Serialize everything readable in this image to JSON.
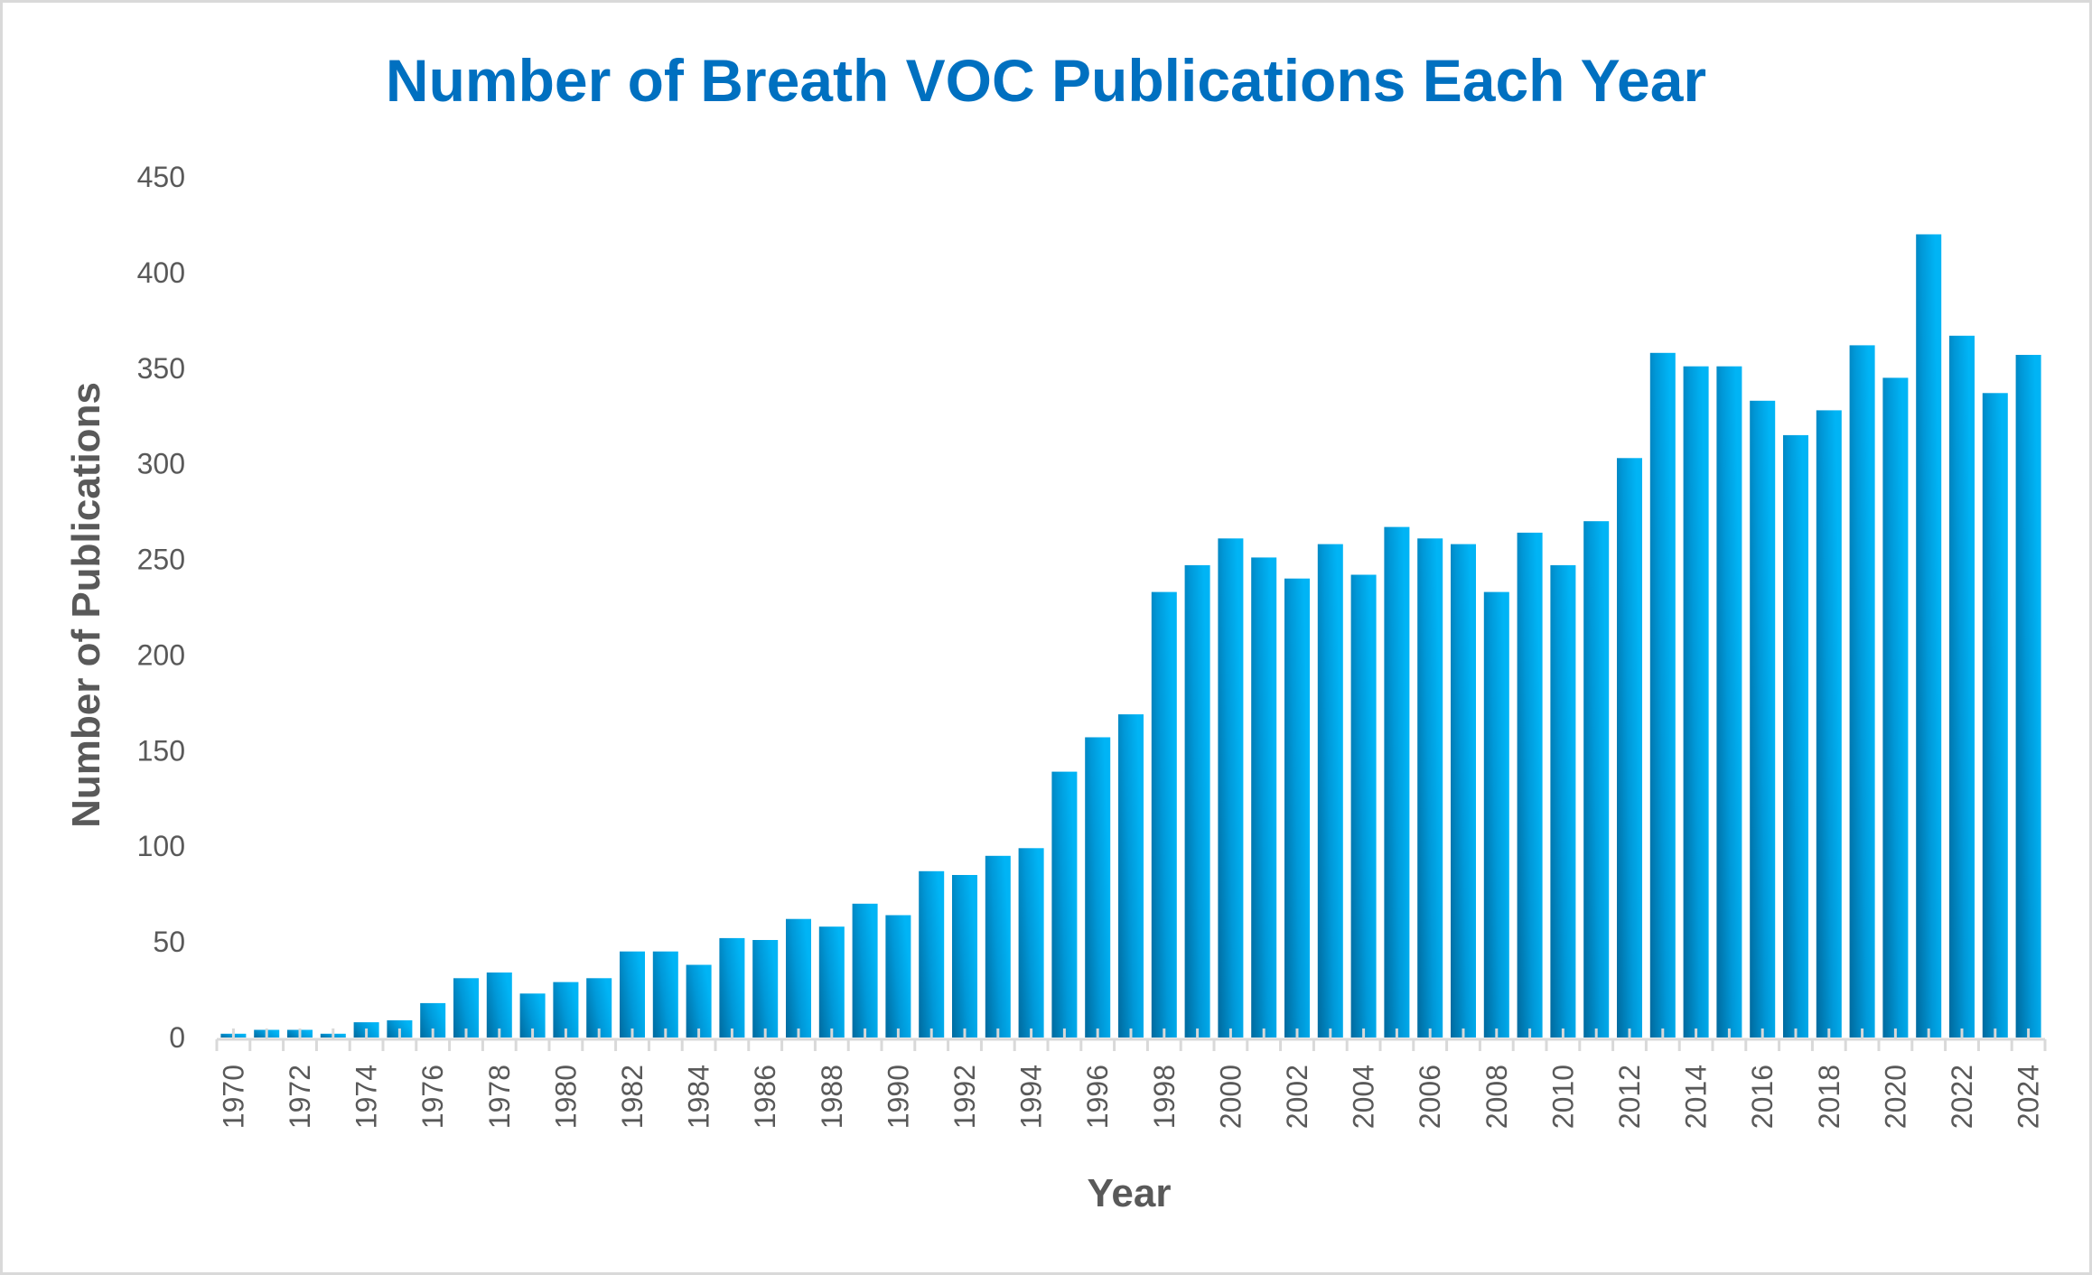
{
  "chart_data": {
    "type": "bar",
    "title": "Number of Breath VOC Publications Each Year",
    "xlabel": "Year",
    "ylabel": "Number of Publications",
    "ylim": [
      0,
      450
    ],
    "yticks": [
      0,
      50,
      100,
      150,
      200,
      250,
      300,
      350,
      400,
      450
    ],
    "grid": false,
    "legend": "none",
    "categories": [
      1970,
      1971,
      1972,
      1973,
      1974,
      1975,
      1976,
      1977,
      1978,
      1979,
      1980,
      1981,
      1982,
      1983,
      1984,
      1985,
      1986,
      1987,
      1988,
      1989,
      1990,
      1991,
      1992,
      1993,
      1994,
      1995,
      1996,
      1997,
      1998,
      1999,
      2000,
      2001,
      2002,
      2003,
      2004,
      2005,
      2006,
      2007,
      2008,
      2009,
      2010,
      2011,
      2012,
      2013,
      2014,
      2015,
      2016,
      2017,
      2018,
      2019,
      2020,
      2021,
      2022,
      2023,
      2024
    ],
    "tick_labels": [
      "1970",
      "1972",
      "1974",
      "1976",
      "1978",
      "1980",
      "1982",
      "1984",
      "1986",
      "1988",
      "1990",
      "1992",
      "1994",
      "1996",
      "1998",
      "2000",
      "2002",
      "2004",
      "2006",
      "2008",
      "2010",
      "2012",
      "2014",
      "2016",
      "2018",
      "2020",
      "2022",
      "2024"
    ],
    "series": [
      {
        "name": "Publications",
        "color_light": "#00B4F5",
        "color_dark": "#006A9E",
        "values": [
          2,
          4,
          4,
          2,
          8,
          9,
          18,
          31,
          34,
          23,
          29,
          31,
          45,
          45,
          38,
          52,
          51,
          62,
          58,
          70,
          64,
          87,
          85,
          95,
          99,
          139,
          157,
          169,
          233,
          247,
          261,
          251,
          240,
          258,
          242,
          267,
          261,
          258,
          233,
          264,
          247,
          270,
          303,
          358,
          351,
          351,
          333,
          315,
          328,
          362,
          345,
          420,
          367,
          337,
          357
        ]
      }
    ]
  }
}
